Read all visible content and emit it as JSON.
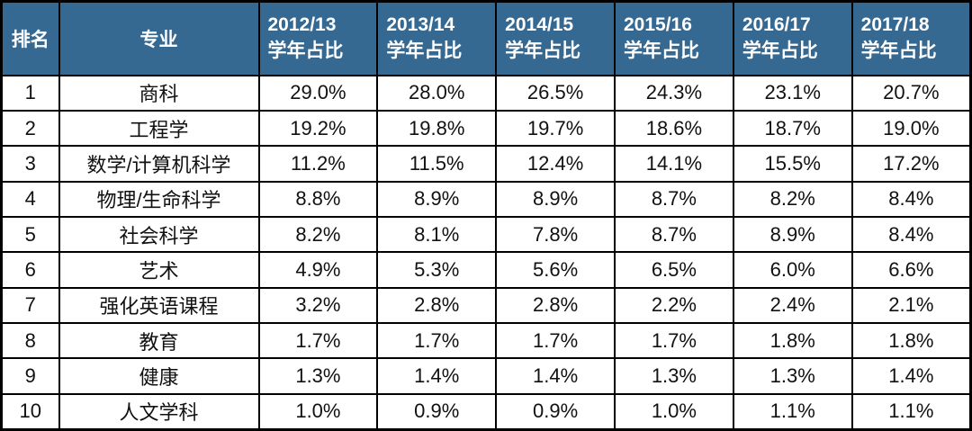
{
  "colors": {
    "header_bg": "#366992",
    "header_text": "#FFFFFF",
    "body_text": "#111111",
    "border": "#000000"
  },
  "header": {
    "rank": "排名",
    "major": "专业",
    "years": [
      {
        "line1": "2012/13",
        "line2": "学年占比"
      },
      {
        "line1": "2013/14",
        "line2": "学年占比"
      },
      {
        "line1": "2014/15",
        "line2": "学年占比"
      },
      {
        "line1": "2015/16",
        "line2": "学年占比"
      },
      {
        "line1": "2016/17",
        "line2": "学年占比"
      },
      {
        "line1": "2017/18",
        "line2": "学年占比"
      }
    ]
  },
  "chart_data": {
    "type": "table",
    "title": "",
    "columns": [
      "排名",
      "专业",
      "2012/13 学年占比",
      "2013/14 学年占比",
      "2014/15 学年占比",
      "2015/16 学年占比",
      "2016/17 学年占比",
      "2017/18 学年占比"
    ],
    "rows": [
      [
        "1",
        "商科",
        "29.0%",
        "28.0%",
        "26.5%",
        "24.3%",
        "23.1%",
        "20.7%"
      ],
      [
        "2",
        "工程学",
        "19.2%",
        "19.8%",
        "19.7%",
        "18.6%",
        "18.7%",
        "19.0%"
      ],
      [
        "3",
        "数学/计算机科学",
        "11.2%",
        "11.5%",
        "12.4%",
        "14.1%",
        "15.5%",
        "17.2%"
      ],
      [
        "4",
        "物理/生命科学",
        "8.8%",
        "8.9%",
        "8.9%",
        "8.7%",
        "8.2%",
        "8.4%"
      ],
      [
        "5",
        "社会科学",
        "8.2%",
        "8.1%",
        "7.8%",
        "8.7%",
        "8.9%",
        "8.4%"
      ],
      [
        "6",
        "艺术",
        "4.9%",
        "5.3%",
        "5.6%",
        "6.5%",
        "6.0%",
        "6.6%"
      ],
      [
        "7",
        "强化英语课程",
        "3.2%",
        "2.8%",
        "2.8%",
        "2.2%",
        "2.4%",
        "2.1%"
      ],
      [
        "8",
        "教育",
        "1.7%",
        "1.7%",
        "1.7%",
        "1.7%",
        "1.8%",
        "1.8%"
      ],
      [
        "9",
        "健康",
        "1.3%",
        "1.4%",
        "1.4%",
        "1.3%",
        "1.3%",
        "1.4%"
      ],
      [
        "10",
        "人文学科",
        "1.0%",
        "0.9%",
        "0.9%",
        "1.0%",
        "1.1%",
        "1.1%"
      ]
    ]
  }
}
